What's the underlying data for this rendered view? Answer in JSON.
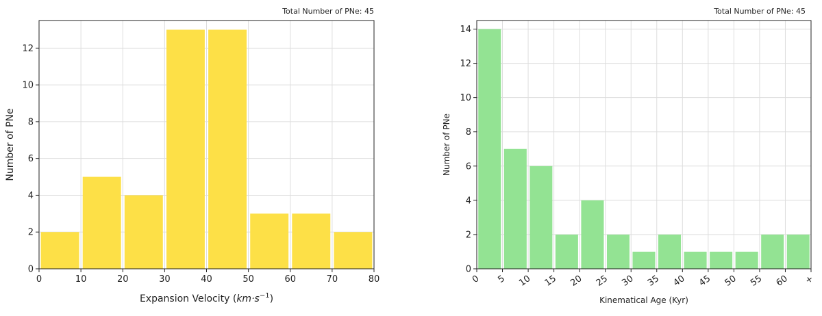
{
  "chart_data": [
    {
      "type": "bar",
      "annotation": "Total Number of PNe: 45",
      "xlabel_prefix": "Expansion Velocity (",
      "xlabel_math": "km·s",
      "xlabel_sup": "−1",
      "xlabel_suffix": ")",
      "ylabel": "Number of PNe",
      "xlim": [
        0,
        80
      ],
      "ylim": [
        0,
        13.5
      ],
      "xticks": [
        "0",
        "10",
        "20",
        "30",
        "40",
        "50",
        "60",
        "70",
        "80"
      ],
      "yticks": [
        "0",
        "2",
        "4",
        "6",
        "8",
        "10",
        "12"
      ],
      "bin_edges": [
        0,
        10,
        20,
        30,
        40,
        50,
        60,
        70,
        80
      ],
      "values": [
        2,
        5,
        4,
        13,
        13,
        3,
        3,
        2
      ],
      "color": "#fde047",
      "grid": true
    },
    {
      "type": "bar",
      "annotation": "Total Number of PNe: 45",
      "xlabel": "Kinematical Age (Kyr)",
      "ylabel": "Number of PNe",
      "ylim": [
        0,
        14.5
      ],
      "xticks": [
        "0",
        "5",
        "10",
        "15",
        "20",
        "25",
        "30",
        "35",
        "40",
        "45",
        "50",
        "55",
        "60",
        "+"
      ],
      "yticks": [
        "0",
        "2",
        "4",
        "6",
        "8",
        "10",
        "12",
        "14"
      ],
      "values": [
        14,
        7,
        6,
        2,
        4,
        2,
        1,
        2,
        1,
        1,
        1,
        2,
        2
      ],
      "color": "#93e393",
      "grid": true
    }
  ]
}
